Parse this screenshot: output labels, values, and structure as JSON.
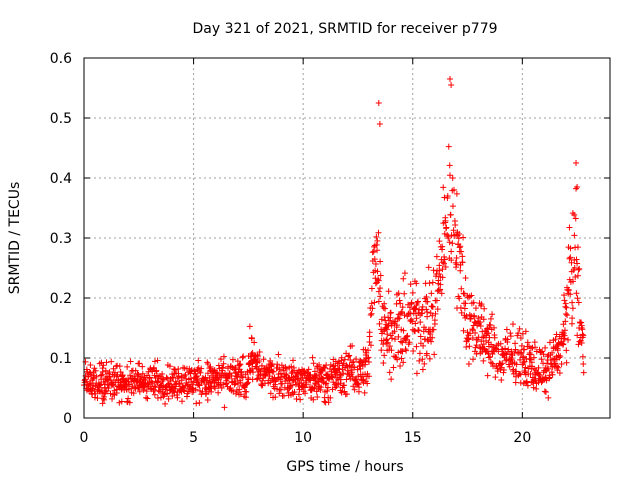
{
  "chart_data": {
    "type": "scatter",
    "title": "Day 321 of 2021, SRMTID for receiver p779",
    "xlabel": "GPS time / hours",
    "ylabel": "SRMTID / TECUs",
    "xlim": [
      0,
      24
    ],
    "ylim": [
      0,
      0.6
    ],
    "xticks": [
      "0",
      "5",
      "10",
      "15",
      "20"
    ],
    "xtick_values": [
      0,
      5,
      10,
      15,
      20
    ],
    "yticks": [
      "0",
      "0.1",
      "0.2",
      "0.3",
      "0.4",
      "0.5",
      "0.6"
    ],
    "ytick_values": [
      0,
      0.1,
      0.2,
      0.3,
      0.4,
      0.5,
      0.6
    ],
    "grid": true,
    "marker": "+",
    "marker_color": "#ff0000",
    "series": [
      {
        "name": "SRMTID p779",
        "x_range": [
          0,
          22.8
        ],
        "sample_step_hours": 0.02,
        "envelope": [
          {
            "x": 0.0,
            "median": 0.06,
            "spread": 0.035
          },
          {
            "x": 2.0,
            "median": 0.06,
            "spread": 0.035
          },
          {
            "x": 5.0,
            "median": 0.06,
            "spread": 0.035
          },
          {
            "x": 7.4,
            "median": 0.065,
            "spread": 0.04
          },
          {
            "x": 7.6,
            "median": 0.11,
            "spread": 0.05
          },
          {
            "x": 8.0,
            "median": 0.075,
            "spread": 0.035
          },
          {
            "x": 10.0,
            "median": 0.06,
            "spread": 0.035
          },
          {
            "x": 12.0,
            "median": 0.075,
            "spread": 0.04
          },
          {
            "x": 13.0,
            "median": 0.085,
            "spread": 0.05
          },
          {
            "x": 13.3,
            "median": 0.3,
            "spread": 0.12
          },
          {
            "x": 13.6,
            "median": 0.17,
            "spread": 0.07
          },
          {
            "x": 14.0,
            "median": 0.14,
            "spread": 0.07
          },
          {
            "x": 15.0,
            "median": 0.16,
            "spread": 0.09
          },
          {
            "x": 16.0,
            "median": 0.17,
            "spread": 0.09
          },
          {
            "x": 16.6,
            "median": 0.35,
            "spread": 0.12
          },
          {
            "x": 17.0,
            "median": 0.3,
            "spread": 0.1
          },
          {
            "x": 17.5,
            "median": 0.16,
            "spread": 0.08
          },
          {
            "x": 18.0,
            "median": 0.15,
            "spread": 0.06
          },
          {
            "x": 19.0,
            "median": 0.1,
            "spread": 0.05
          },
          {
            "x": 20.0,
            "median": 0.1,
            "spread": 0.05
          },
          {
            "x": 21.0,
            "median": 0.075,
            "spread": 0.04
          },
          {
            "x": 21.8,
            "median": 0.12,
            "spread": 0.05
          },
          {
            "x": 22.1,
            "median": 0.2,
            "spread": 0.1
          },
          {
            "x": 22.4,
            "median": 0.28,
            "spread": 0.12
          },
          {
            "x": 22.8,
            "median": 0.1,
            "spread": 0.04
          }
        ],
        "peaks": [
          {
            "x": 13.45,
            "y": 0.525
          },
          {
            "x": 13.5,
            "y": 0.49
          },
          {
            "x": 16.7,
            "y": 0.565
          },
          {
            "x": 16.75,
            "y": 0.555
          },
          {
            "x": 22.45,
            "y": 0.425
          },
          {
            "x": 22.5,
            "y": 0.385
          }
        ]
      }
    ]
  }
}
